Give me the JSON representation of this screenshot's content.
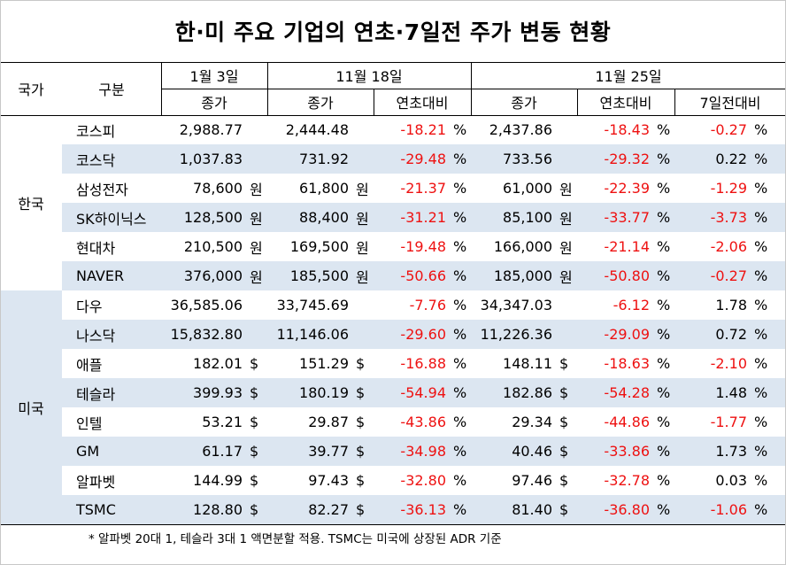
{
  "title": "한·미 주요 기업의 연초·7일전 주가 변동 현황",
  "header": {
    "country": "국가",
    "category": "구분",
    "date1": "1월 3일",
    "date2": "11월 18일",
    "date3": "11월 25일",
    "close": "종가",
    "ytd": "연초대비",
    "week": "7일전대비"
  },
  "units": {
    "won": "원",
    "usd": "$",
    "pct": "%"
  },
  "countries": {
    "korea": "한국",
    "usa": "미국"
  },
  "rows": [
    {
      "name": "코스피",
      "jan3": "2,988.77",
      "nov18": "2,444.48",
      "nov18_ytd": "-18.21",
      "nov25": "2,437.86",
      "nov25_ytd": "-18.43",
      "week": "-0.27",
      "unit": ""
    },
    {
      "name": "코스닥",
      "jan3": "1,037.83",
      "nov18": "731.92",
      "nov18_ytd": "-29.48",
      "nov25": "733.56",
      "nov25_ytd": "-29.32",
      "week": "0.22",
      "unit": ""
    },
    {
      "name": "삼성전자",
      "jan3": "78,600",
      "nov18": "61,800",
      "nov18_ytd": "-21.37",
      "nov25": "61,000",
      "nov25_ytd": "-22.39",
      "week": "-1.29",
      "unit": "원"
    },
    {
      "name": "SK하이닉스",
      "jan3": "128,500",
      "nov18": "88,400",
      "nov18_ytd": "-31.21",
      "nov25": "85,100",
      "nov25_ytd": "-33.77",
      "week": "-3.73",
      "unit": "원"
    },
    {
      "name": "현대차",
      "jan3": "210,500",
      "nov18": "169,500",
      "nov18_ytd": "-19.48",
      "nov25": "166,000",
      "nov25_ytd": "-21.14",
      "week": "-2.06",
      "unit": "원"
    },
    {
      "name": "NAVER",
      "jan3": "376,000",
      "nov18": "185,500",
      "nov18_ytd": "-50.66",
      "nov25": "185,000",
      "nov25_ytd": "-50.80",
      "week": "-0.27",
      "unit": "원"
    },
    {
      "name": "다우",
      "jan3": "36,585.06",
      "nov18": "33,745.69",
      "nov18_ytd": "-7.76",
      "nov25": "34,347.03",
      "nov25_ytd": "-6.12",
      "week": "1.78",
      "unit": ""
    },
    {
      "name": "나스닥",
      "jan3": "15,832.80",
      "nov18": "11,146.06",
      "nov18_ytd": "-29.60",
      "nov25": "11,226.36",
      "nov25_ytd": "-29.09",
      "week": "0.72",
      "unit": ""
    },
    {
      "name": "애플",
      "jan3": "182.01",
      "nov18": "151.29",
      "nov18_ytd": "-16.88",
      "nov25": "148.11",
      "nov25_ytd": "-18.63",
      "week": "-2.10",
      "unit": "$"
    },
    {
      "name": "테슬라",
      "jan3": "399.93",
      "nov18": "180.19",
      "nov18_ytd": "-54.94",
      "nov25": "182.86",
      "nov25_ytd": "-54.28",
      "week": "1.48",
      "unit": "$"
    },
    {
      "name": "인텔",
      "jan3": "53.21",
      "nov18": "29.87",
      "nov18_ytd": "-43.86",
      "nov25": "29.34",
      "nov25_ytd": "-44.86",
      "week": "-1.77",
      "unit": "$"
    },
    {
      "name": "GM",
      "jan3": "61.17",
      "nov18": "39.77",
      "nov18_ytd": "-34.98",
      "nov25": "40.46",
      "nov25_ytd": "-33.86",
      "week": "1.73",
      "unit": "$"
    },
    {
      "name": "알파벳",
      "jan3": "144.99",
      "nov18": "97.43",
      "nov18_ytd": "-32.80",
      "nov25": "97.46",
      "nov25_ytd": "-32.78",
      "week": "0.03",
      "unit": "$"
    },
    {
      "name": "TSMC",
      "jan3": "128.80",
      "nov18": "82.27",
      "nov18_ytd": "-36.13",
      "nov25": "81.40",
      "nov25_ytd": "-36.80",
      "week": "-1.06",
      "unit": "$"
    }
  ],
  "colors": {
    "band": "#dce6f1",
    "negative": "#ee1111",
    "header_bg": "#ffffff"
  },
  "footnote": "* 알파벳 20대 1, 테슬라 3대 1 액면분할 적용. TSMC는 미국에 상장된 ADR 기준"
}
